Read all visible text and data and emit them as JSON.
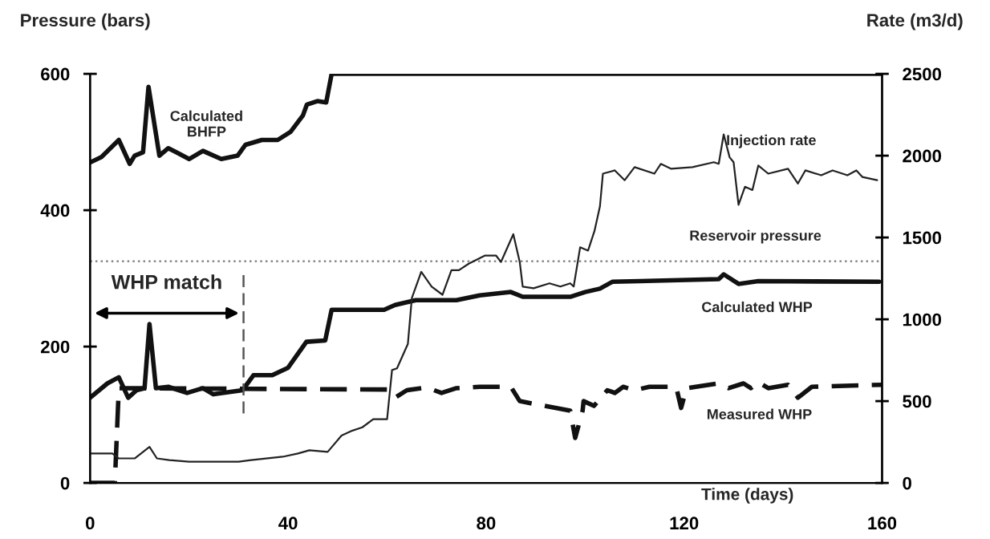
{
  "chart_data": {
    "type": "line",
    "xlabel": "Time (days)",
    "ylabel": "Pressure (bars)",
    "y2label": "Rate (m3/d)",
    "xlim": [
      0,
      160
    ],
    "xticks": [
      0,
      40,
      80,
      120,
      160
    ],
    "ylim": [
      0,
      600
    ],
    "yticks": [
      0,
      200,
      400,
      600
    ],
    "y2lim": [
      0,
      2500
    ],
    "y2ticks": [
      0,
      500,
      1000,
      1500,
      2000,
      2500
    ],
    "grid": false,
    "legend": false,
    "marker": "none",
    "series": [
      {
        "color": "#111111",
        "line_style": "solid",
        "x": [
          0,
          2.3,
          5.8,
          8,
          9,
          10.7,
          11.8,
          14,
          15.8,
          17.4,
          20,
          22.8,
          26.5,
          29.8,
          31.4,
          34.7,
          37.9,
          40.5,
          43,
          43.8,
          45.9,
          47.7,
          48.8,
          160
        ],
        "values": [
          470,
          478,
          503,
          468,
          480,
          485,
          581,
          480,
          491,
          485,
          475,
          487,
          475,
          480,
          496,
          503,
          503,
          515,
          539,
          555,
          560,
          558,
          600,
          600
        ]
      },
      {
        "color": "#111111",
        "line_style": "solid",
        "x": [
          0,
          3.5,
          5.8,
          7.7,
          9.4,
          11,
          12,
          13.3,
          15.8,
          19.6,
          22.8,
          24.9,
          30.8,
          33,
          36.8,
          40,
          43.7,
          47.5,
          48.8,
          59.4,
          61.6,
          65.8,
          74,
          78.7,
          85,
          87.4,
          97,
          100,
          103,
          105.5,
          111,
          127,
          128,
          131,
          135,
          159.4
        ],
        "values": [
          125,
          146,
          155,
          125,
          136,
          139,
          233,
          139,
          141,
          132,
          139,
          130,
          136,
          158,
          158,
          169,
          207,
          209,
          254,
          254,
          261,
          268,
          268,
          275,
          280,
          273,
          273,
          280,
          285,
          295,
          296,
          299,
          306,
          292,
          296,
          295
        ]
      },
      {
        "color": "#111111",
        "line_style": "dashed",
        "x": [
          0,
          5,
          5.8,
          60,
          61.6,
          64,
          68,
          71,
          74,
          78.7,
          85,
          86.8,
          97,
          98,
          99.5,
          99.7,
          101.8,
          104.5,
          106,
          107.7,
          110,
          113,
          118.4,
          119.4,
          120.5,
          127,
          129,
          132,
          133.5,
          135,
          137,
          141,
          143,
          145.8,
          160
        ],
        "values": [
          0,
          0,
          139,
          137,
          125,
          136,
          140,
          132,
          139,
          141,
          141,
          120,
          106,
          66,
          106,
          120,
          113,
          136,
          132,
          141,
          136,
          141,
          141,
          110,
          139,
          146,
          139,
          146,
          139,
          148,
          139,
          144,
          125,
          141,
          144
        ]
      },
      {
        "color": "#222222",
        "line_style": "solid",
        "axis": "y2",
        "x": [
          0,
          4.5,
          5.8,
          9,
          12,
          13.5,
          16,
          20,
          24.9,
          30,
          32.5,
          38.9,
          42,
          44.3,
          48,
          50.8,
          53,
          55,
          57.2,
          60,
          61,
          62,
          64.2,
          65,
          66.9,
          69,
          71.2,
          73,
          74.5,
          76.5,
          79.8,
          82,
          83,
          85.5,
          86.8,
          87.4,
          89.6,
          92.8,
          95,
          97,
          97.7,
          99,
          100.6,
          101.9,
          103,
          103.6,
          106,
          108,
          110,
          114,
          115.3,
          117.4,
          121.7,
          126,
          127,
          128,
          129.2,
          130,
          131,
          132.3,
          133.8,
          135,
          137,
          141,
          143,
          144.5,
          147.7,
          150,
          153,
          154.8,
          156,
          159
        ],
        "values": [
          180,
          180,
          150,
          150,
          220,
          150,
          140,
          130,
          130,
          130,
          140,
          160,
          180,
          200,
          190,
          290,
          320,
          340,
          390,
          390,
          690,
          700,
          850,
          1130,
          1290,
          1200,
          1150,
          1300,
          1300,
          1340,
          1390,
          1390,
          1350,
          1520,
          1350,
          1200,
          1190,
          1220,
          1200,
          1220,
          1200,
          1440,
          1420,
          1540,
          1690,
          1890,
          1910,
          1850,
          1930,
          1890,
          1950,
          1920,
          1930,
          1960,
          1950,
          2130,
          1990,
          1960,
          1700,
          1810,
          1790,
          1940,
          1890,
          1920,
          1830,
          1910,
          1880,
          1910,
          1880,
          1910,
          1870,
          1850
        ]
      }
    ],
    "ref_lines": [
      {
        "axis": "y",
        "value": 325,
        "label": "Reservoir pressure",
        "color": "#888888",
        "line_style": "dotted"
      },
      {
        "axis": "x",
        "value": 31,
        "label": "WHP match",
        "color": "#555555",
        "line_style": "dashed"
      }
    ],
    "annotations": [
      "Calculated\nBHFP",
      "Injection rate",
      "Calculated WHP",
      "Measured WHP"
    ]
  }
}
